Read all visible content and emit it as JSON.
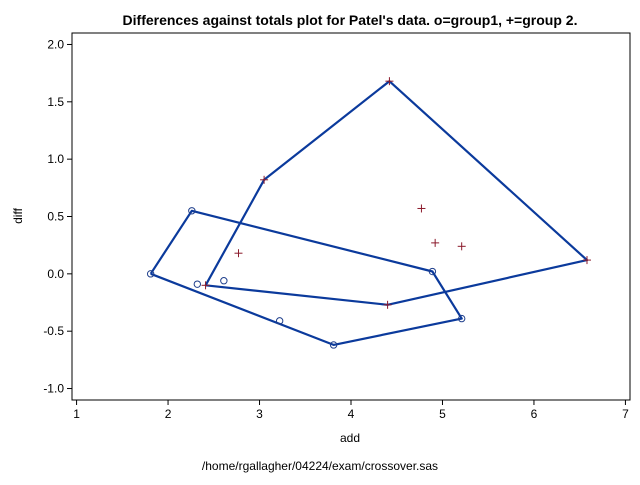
{
  "chart_data": {
    "type": "scatter",
    "title": "Differences against totals plot for Patel's data. o=group1, +=group 2.",
    "xlabel": "add",
    "ylabel": "diff",
    "footnote": "/home/rgallagher/04224/exam/crossover.sas",
    "xlim": [
      0.95,
      7.05
    ],
    "ylim": [
      -1.1,
      2.1
    ],
    "x_ticks": [
      1,
      2,
      3,
      4,
      5,
      6,
      7
    ],
    "y_ticks": [
      -1.0,
      -0.5,
      0.0,
      0.5,
      1.0,
      1.5,
      2.0
    ],
    "y_tick_labels": [
      "-1.0",
      "-0.5",
      "0.0",
      "0.5",
      "1.0",
      "1.5",
      "2.0"
    ],
    "grid": false,
    "colors": {
      "hull": "#0b3a9c",
      "group1": "#1f3f8c",
      "group2": "#8b1a2b",
      "text": "#000000",
      "frame": "#000000"
    },
    "series": [
      {
        "marker": "circle",
        "points": [
          [
            1.81,
            0.0
          ],
          [
            2.26,
            0.55
          ],
          [
            2.32,
            -0.09
          ],
          [
            2.61,
            -0.06
          ],
          [
            3.22,
            -0.41
          ],
          [
            3.81,
            -0.62
          ],
          [
            4.89,
            0.02
          ],
          [
            5.21,
            -0.39
          ]
        ],
        "hull": [
          [
            1.81,
            0.0
          ],
          [
            2.26,
            0.55
          ],
          [
            4.89,
            0.02
          ],
          [
            5.21,
            -0.39
          ],
          [
            3.81,
            -0.62
          ],
          [
            1.81,
            0.0
          ]
        ]
      },
      {
        "marker": "plus",
        "points": [
          [
            2.41,
            -0.1
          ],
          [
            2.77,
            0.18
          ],
          [
            3.05,
            0.82
          ],
          [
            4.42,
            1.68
          ],
          [
            4.4,
            -0.27
          ],
          [
            4.77,
            0.57
          ],
          [
            4.92,
            0.27
          ],
          [
            5.21,
            0.24
          ],
          [
            6.58,
            0.12
          ]
        ],
        "hull": [
          [
            2.41,
            -0.1
          ],
          [
            3.05,
            0.82
          ],
          [
            4.42,
            1.68
          ],
          [
            6.58,
            0.12
          ],
          [
            4.4,
            -0.27
          ],
          [
            2.41,
            -0.1
          ]
        ]
      }
    ]
  }
}
